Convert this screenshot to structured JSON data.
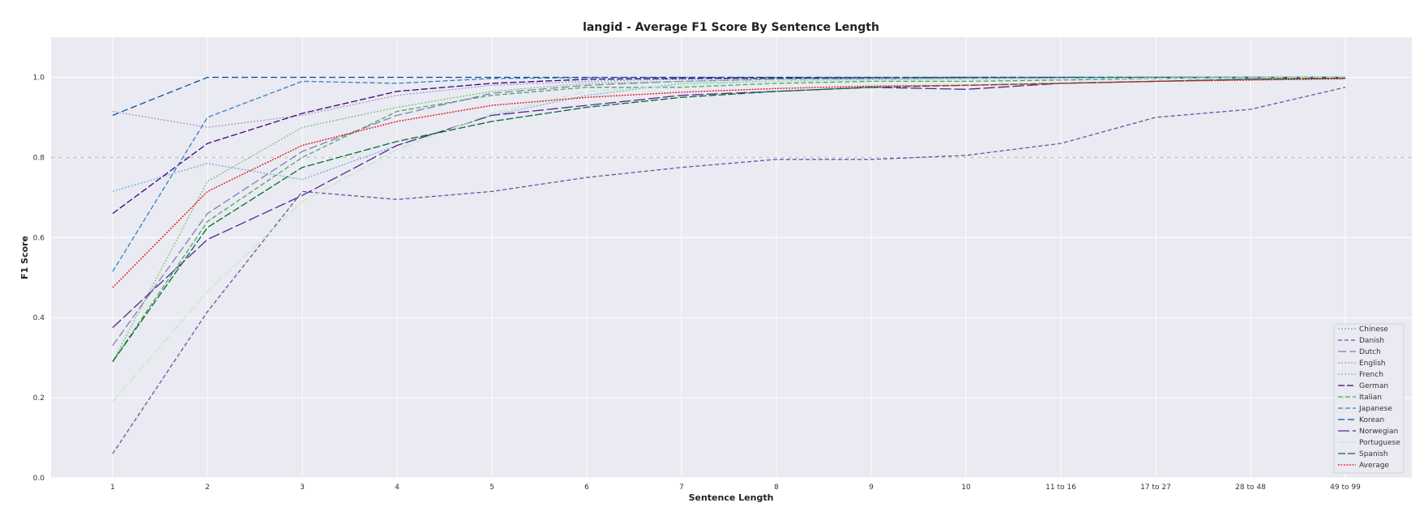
{
  "chart_data": {
    "type": "line",
    "title": "langid - Average F1 Score By Sentence Length",
    "xlabel": "Sentence Length",
    "ylabel": "F1 Score",
    "ylim": [
      0.0,
      1.1
    ],
    "yticks": [
      "0.0",
      "0.2",
      "0.4",
      "0.6",
      "0.8",
      "1.0"
    ],
    "grid": true,
    "legend_position": "bottom-right",
    "reference_line": 0.8,
    "categories": [
      "1",
      "2",
      "3",
      "4",
      "5",
      "6",
      "7",
      "8",
      "9",
      "10",
      "11 to 16",
      "17 to 27",
      "28 to 48",
      "49 to 99"
    ],
    "series": [
      {
        "name": "Chinese",
        "color": "#6baed6",
        "dash": "2,2",
        "values": [
          0.715,
          0.785,
          0.745,
          0.83,
          0.905,
          0.955,
          0.985,
          0.99,
          0.995,
          0.995,
          0.997,
          0.998,
          0.998,
          0.999
        ]
      },
      {
        "name": "Danish",
        "color": "#6a51a3",
        "dash": "5,3",
        "values": [
          0.06,
          0.415,
          0.715,
          0.695,
          0.715,
          0.75,
          0.775,
          0.795,
          0.795,
          0.805,
          0.835,
          0.9,
          0.92,
          0.975
        ]
      },
      {
        "name": "Dutch",
        "color": "#807dba",
        "dash": "10,4",
        "values": [
          0.33,
          0.66,
          0.815,
          0.905,
          0.96,
          0.98,
          0.99,
          0.995,
          0.997,
          0.998,
          0.999,
          1.0,
          1.0,
          1.0
        ]
      },
      {
        "name": "English",
        "color": "#9e9ac8",
        "dash": "2,2",
        "values": [
          0.915,
          0.875,
          0.905,
          0.955,
          0.98,
          0.99,
          0.995,
          0.997,
          0.998,
          0.999,
          0.999,
          1.0,
          1.0,
          1.0
        ]
      },
      {
        "name": "French",
        "color": "#74c476",
        "dash": "2,2",
        "values": [
          0.29,
          0.74,
          0.875,
          0.925,
          0.965,
          0.985,
          0.99,
          0.995,
          0.997,
          0.998,
          0.999,
          1.0,
          1.0,
          1.0
        ]
      },
      {
        "name": "German",
        "color": "#3f007d",
        "dash": "8,3",
        "values": [
          0.66,
          0.835,
          0.91,
          0.965,
          0.985,
          0.995,
          0.997,
          0.998,
          0.999,
          1.0,
          1.0,
          1.0,
          1.0,
          1.0
        ]
      },
      {
        "name": "Italian",
        "color": "#41ab5d",
        "dash": "6,3",
        "values": [
          0.29,
          0.64,
          0.8,
          0.915,
          0.955,
          0.975,
          0.975,
          0.985,
          0.99,
          0.99,
          0.993,
          0.997,
          0.998,
          0.999
        ]
      },
      {
        "name": "Japanese",
        "color": "#3182bd",
        "dash": "6,3",
        "values": [
          0.515,
          0.9,
          0.99,
          0.985,
          0.997,
          0.999,
          1.0,
          1.0,
          1.0,
          1.0,
          1.0,
          1.0,
          1.0,
          1.0
        ]
      },
      {
        "name": "Korean",
        "color": "#08519c",
        "dash": "8,4",
        "values": [
          0.905,
          1.0,
          1.0,
          1.0,
          1.0,
          1.0,
          1.0,
          1.0,
          1.0,
          1.0,
          1.0,
          1.0,
          1.0,
          1.0
        ]
      },
      {
        "name": "Norwegian",
        "color": "#54278f",
        "dash": "14,4",
        "values": [
          0.375,
          0.595,
          0.705,
          0.83,
          0.905,
          0.93,
          0.955,
          0.965,
          0.975,
          0.97,
          0.985,
          0.99,
          0.995,
          0.998
        ]
      },
      {
        "name": "Portuguese",
        "color": "#c7e9c0",
        "dash": "12,4",
        "values": [
          0.19,
          0.465,
          0.69,
          0.82,
          0.91,
          0.965,
          0.98,
          0.99,
          0.993,
          0.995,
          0.997,
          0.998,
          0.999,
          1.0
        ]
      },
      {
        "name": "Spanish",
        "color": "#006d2c",
        "dash": "9,3",
        "values": [
          0.29,
          0.625,
          0.775,
          0.84,
          0.89,
          0.925,
          0.95,
          0.965,
          0.975,
          0.98,
          0.985,
          0.99,
          0.995,
          0.998
        ]
      },
      {
        "name": "Average",
        "color": "#e31a1c",
        "dash": "2,1.5",
        "values": [
          0.475,
          0.715,
          0.83,
          0.89,
          0.93,
          0.95,
          0.963,
          0.972,
          0.978,
          0.98,
          0.985,
          0.99,
          0.993,
          0.996
        ]
      }
    ]
  }
}
